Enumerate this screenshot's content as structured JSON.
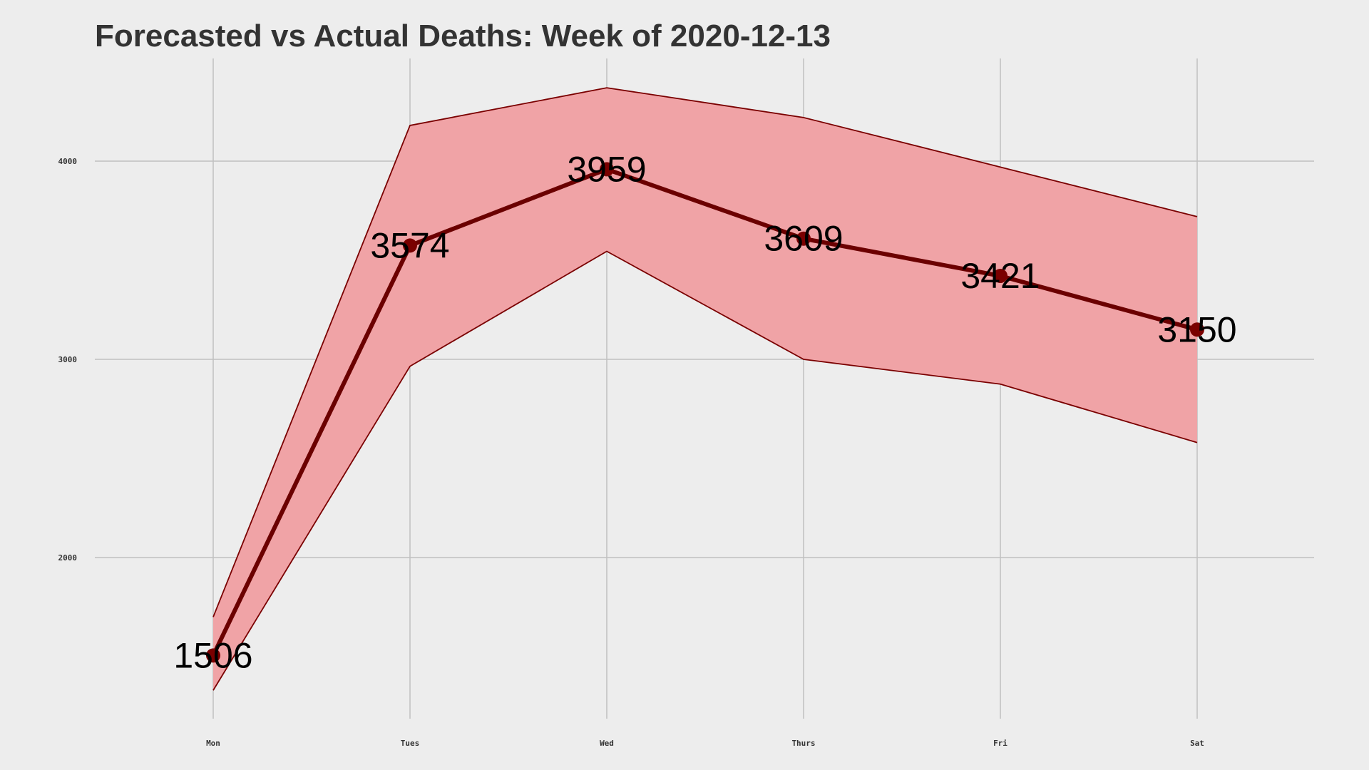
{
  "chart_data": {
    "type": "line",
    "title": "Forecasted vs Actual Deaths: Week of 2020-12-13",
    "xlabel": "",
    "ylabel": "",
    "categories": [
      "Mon",
      "Tues",
      "Wed",
      "Thurs",
      "Fri",
      "Sat"
    ],
    "series": [
      {
        "values": [
          1506,
          3574,
          3959,
          3609,
          3421,
          3150
        ],
        "data_labels": [
          "1506",
          "3574",
          "3959",
          "3609",
          "3421",
          "3150"
        ]
      }
    ],
    "band": {
      "upper": [
        1700,
        4180,
        4370,
        4220,
        3970,
        3720
      ],
      "lower": [
        1330,
        2965,
        3545,
        3000,
        2875,
        2580
      ]
    },
    "yticks": [
      2000,
      3000,
      4000
    ],
    "ytick_labels": [
      "2000",
      "3000",
      "4000"
    ],
    "ylim": [
      1200,
      4720
    ],
    "grid": true,
    "legend": "none",
    "colors": {
      "line": "#6b0000",
      "point": "#7a0000",
      "band_fill": "#f0a3a6",
      "band_edge": "#7a0000",
      "grid": "#c0c0c0",
      "background": "#ededed",
      "title": "#333333"
    }
  }
}
